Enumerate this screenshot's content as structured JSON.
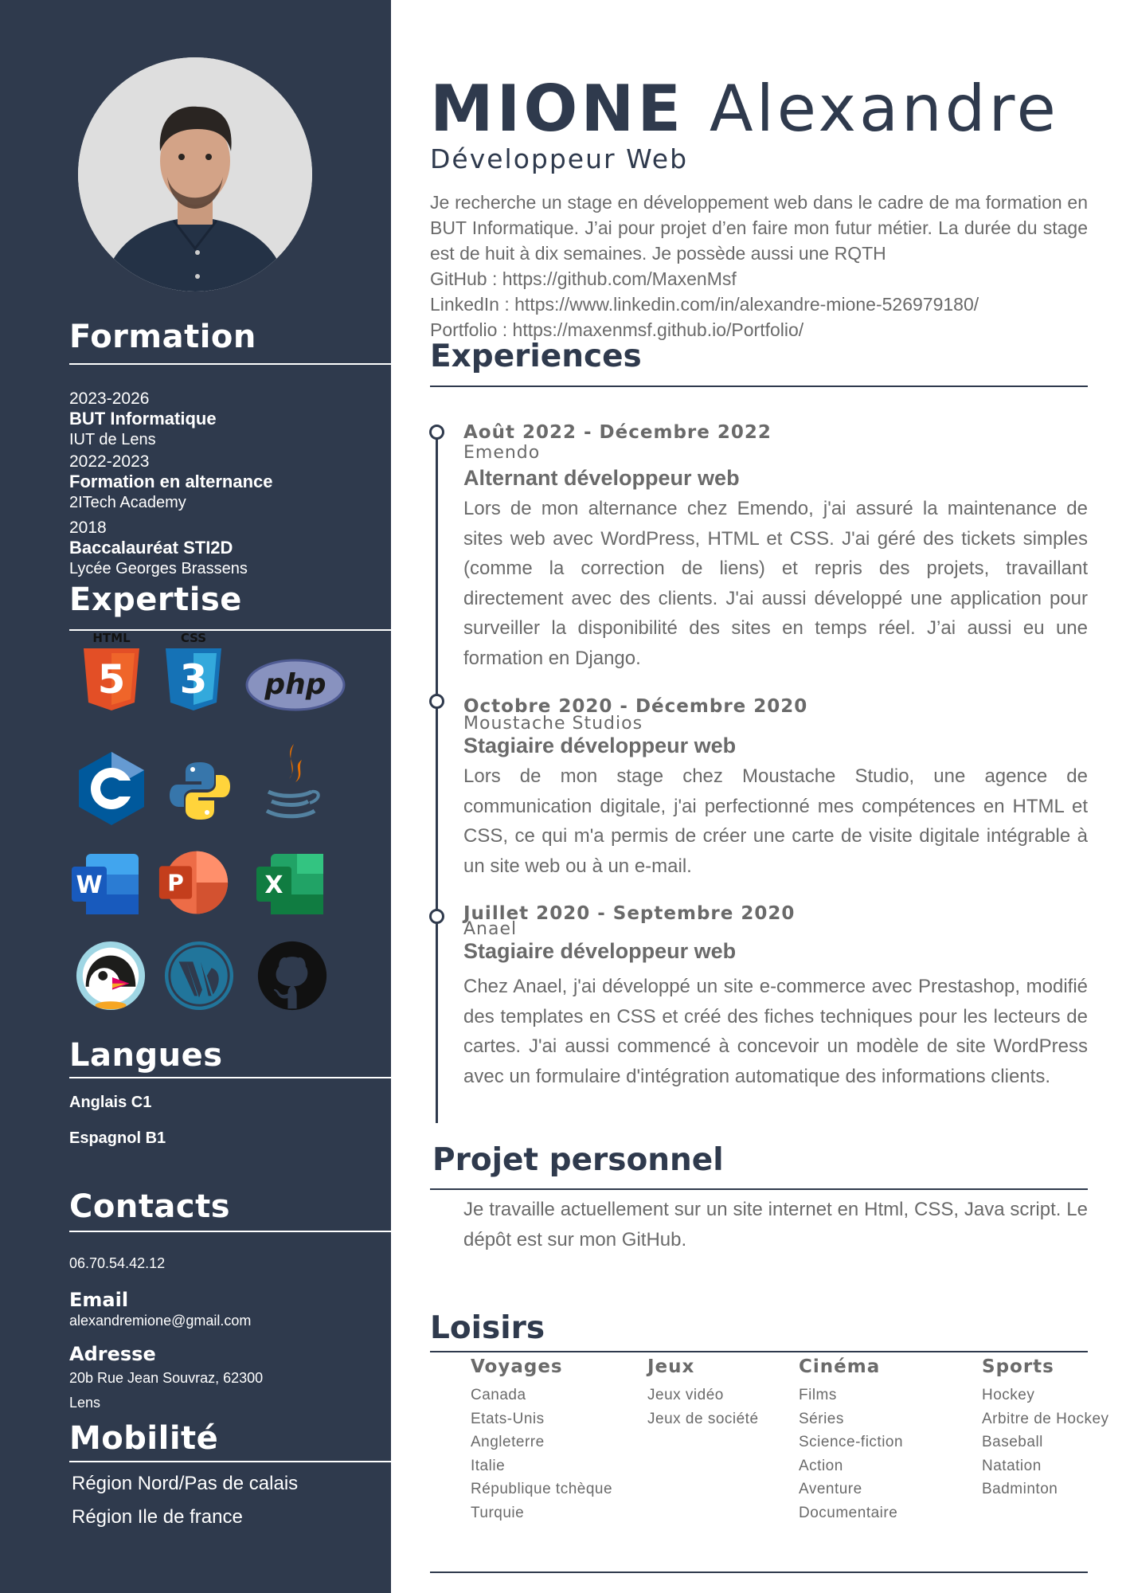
{
  "header": {
    "last_name": "MIONE",
    "first_name": "Alexandre",
    "role": "Développeur Web",
    "intro_lines": [
      "Je recherche un stage en développement web dans le cadre de ma formation en BUT Informatique. J’ai pour projet d’en faire mon futur métier. La durée du stage est de huit à dix semaines. Je possède aussi une RQTH"
    ],
    "github": "GitHub : https://github.com/MaxenMsf",
    "linkedin": "LinkedIn : https://www.linkedin.com/in/alexandre-mione-526979180/",
    "portfolio": "Portfolio : https://maxenmsf.github.io/Portfolio/"
  },
  "sidebar": {
    "formation_title": "Formation",
    "formation": [
      {
        "years": "2023-2026",
        "degree": "BUT Informatique",
        "school": "IUT de Lens"
      },
      {
        "years": "2022-2023",
        "degree": "Formation en alternance",
        "school": "2ITech Academy"
      },
      {
        "years": "2018",
        "degree": "Baccalauréat STI2D",
        "school": "Lycée Georges Brassens"
      }
    ],
    "expertise_title": "Expertise",
    "skills": {
      "html_label": "HTML",
      "html_glyph": "5",
      "css_label": "CSS",
      "css_glyph": "3",
      "php": "php",
      "c": "C",
      "word": "W",
      "powerpoint": "P",
      "excel": "X",
      "icons": [
        "html5-icon",
        "css3-icon",
        "php-icon",
        "c-language-icon",
        "python-icon",
        "java-icon",
        "word-icon",
        "powerpoint-icon",
        "excel-icon",
        "prestashop-icon",
        "wordpress-icon",
        "github-icon"
      ]
    },
    "langues_title": "Langues",
    "langues": [
      "Anglais C1",
      "Espagnol  B1"
    ],
    "contacts_title": "Contacts",
    "phone": "06.70.54.42.12",
    "email_label": "Email",
    "email": "alexandremione@gmail.com",
    "address_label": "Adresse",
    "address_line1": "20b Rue Jean Souvraz, 62300",
    "address_line2": "Lens",
    "mobilite_title": "Mobilité",
    "mobilite": [
      "Région Nord/Pas de calais",
      "Région Ile de france"
    ]
  },
  "experiences": {
    "title": "Experiences",
    "items": [
      {
        "date": "Août 2022 - Décembre 2022",
        "company": "Emendo",
        "position": "Alternant développeur web",
        "description": "Lors de mon alternance chez Emendo, j'ai assuré la maintenance de sites web avec WordPress, HTML et CSS. J'ai géré des tickets simples (comme la correction de liens) et repris des projets, travaillant directement avec des clients. J'ai aussi développé une application pour surveiller la disponibilité des sites en temps réel. J’ai aussi eu une formation en Django."
      },
      {
        "date": "Octobre 2020 - Décembre 2020",
        "company": "Moustache Studios",
        "position": "Stagiaire développeur web",
        "description": "Lors de mon stage chez Moustache Studio, une agence de communication digitale, j'ai perfectionné mes compétences en HTML et CSS, ce qui m'a permis de créer une carte de visite digitale intégrable à un site web ou à un e-mail."
      },
      {
        "date": "Juillet 2020 - Septembre 2020",
        "company": "Anael",
        "position": "Stagiaire développeur web",
        "description": "Chez Anael, j'ai développé un site e-commerce avec Prestashop, modifié des templates en CSS et créé des fiches techniques pour les lecteurs de cartes. J'ai aussi commencé à concevoir un modèle de site WordPress avec un formulaire d'intégration automatique des informations clients."
      }
    ]
  },
  "projet": {
    "title": "Projet personnel",
    "text": "Je travaille actuellement sur un site internet en Html, CSS, Java script. Le dépôt est sur mon GitHub."
  },
  "loisirs": {
    "title": "Loisirs",
    "columns": [
      {
        "heading": "Voyages",
        "items": [
          "Canada",
          "Etats-Unis",
          "Angleterre",
          "Italie",
          "République tchèque",
          "Turquie"
        ]
      },
      {
        "heading": "Jeux",
        "items": [
          "Jeux vidéo",
          "Jeux de société"
        ]
      },
      {
        "heading": "Cinéma",
        "items": [
          "Films",
          "Séries",
          "Science-fiction",
          "Action",
          "Aventure",
          "Documentaire"
        ]
      },
      {
        "heading": "Sports",
        "items": [
          "Hockey",
          "Arbitre de Hockey",
          "Baseball",
          "Natation",
          "Badminton"
        ]
      }
    ]
  },
  "colors": {
    "sidebar": "#2f3a4d",
    "text_gray": "#6a6a6a",
    "accent": "#2f3a4d"
  }
}
